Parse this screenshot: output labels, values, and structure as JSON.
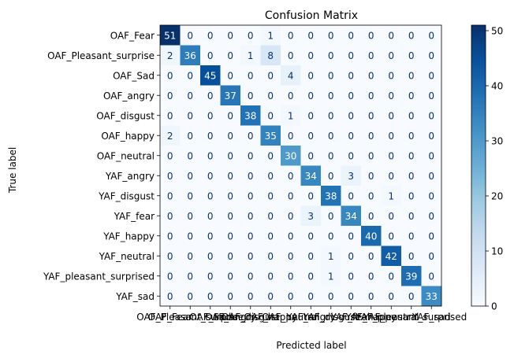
{
  "chart_data": {
    "type": "heatmap",
    "title": "Confusion Matrix",
    "xlabel": "Predicted label",
    "ylabel": "True label",
    "labels": [
      "OAF_Fear",
      "OAF_Pleasant_surprise",
      "OAF_Sad",
      "OAF_angry",
      "OAF_disgust",
      "OAF_happy",
      "OAF_neutral",
      "YAF_angry",
      "YAF_disgust",
      "YAF_fear",
      "YAF_happy",
      "YAF_neutral",
      "YAF_pleasant_surprised",
      "YAF_sad"
    ],
    "matrix": [
      [
        51,
        0,
        0,
        0,
        0,
        1,
        0,
        0,
        0,
        0,
        0,
        0,
        0,
        0
      ],
      [
        2,
        36,
        0,
        0,
        1,
        8,
        0,
        0,
        0,
        0,
        0,
        0,
        0,
        0
      ],
      [
        0,
        0,
        45,
        0,
        0,
        0,
        4,
        0,
        0,
        0,
        0,
        0,
        0,
        0
      ],
      [
        0,
        0,
        0,
        37,
        0,
        0,
        0,
        0,
        0,
        0,
        0,
        0,
        0,
        0
      ],
      [
        0,
        0,
        0,
        0,
        38,
        0,
        1,
        0,
        0,
        0,
        0,
        0,
        0,
        0
      ],
      [
        2,
        0,
        0,
        0,
        0,
        35,
        0,
        0,
        0,
        0,
        0,
        0,
        0,
        0
      ],
      [
        0,
        0,
        0,
        0,
        0,
        0,
        30,
        0,
        0,
        0,
        0,
        0,
        0,
        0
      ],
      [
        0,
        0,
        0,
        0,
        0,
        0,
        0,
        34,
        0,
        3,
        0,
        0,
        0,
        0
      ],
      [
        0,
        0,
        0,
        0,
        0,
        0,
        0,
        0,
        38,
        0,
        0,
        1,
        0,
        0
      ],
      [
        0,
        0,
        0,
        0,
        0,
        0,
        0,
        3,
        0,
        34,
        0,
        0,
        0,
        0
      ],
      [
        0,
        0,
        0,
        0,
        0,
        0,
        0,
        0,
        0,
        0,
        40,
        0,
        0,
        0
      ],
      [
        0,
        0,
        0,
        0,
        0,
        0,
        0,
        0,
        1,
        0,
        0,
        42,
        0,
        0
      ],
      [
        0,
        0,
        0,
        0,
        0,
        0,
        0,
        0,
        1,
        0,
        0,
        0,
        39,
        0
      ],
      [
        0,
        0,
        0,
        0,
        0,
        0,
        0,
        0,
        0,
        0,
        0,
        0,
        0,
        33
      ]
    ],
    "colorbar": {
      "colormap": "Blues",
      "range": [
        0,
        51
      ],
      "ticks": [
        0,
        10,
        20,
        30,
        40,
        50
      ]
    },
    "grid": false
  }
}
